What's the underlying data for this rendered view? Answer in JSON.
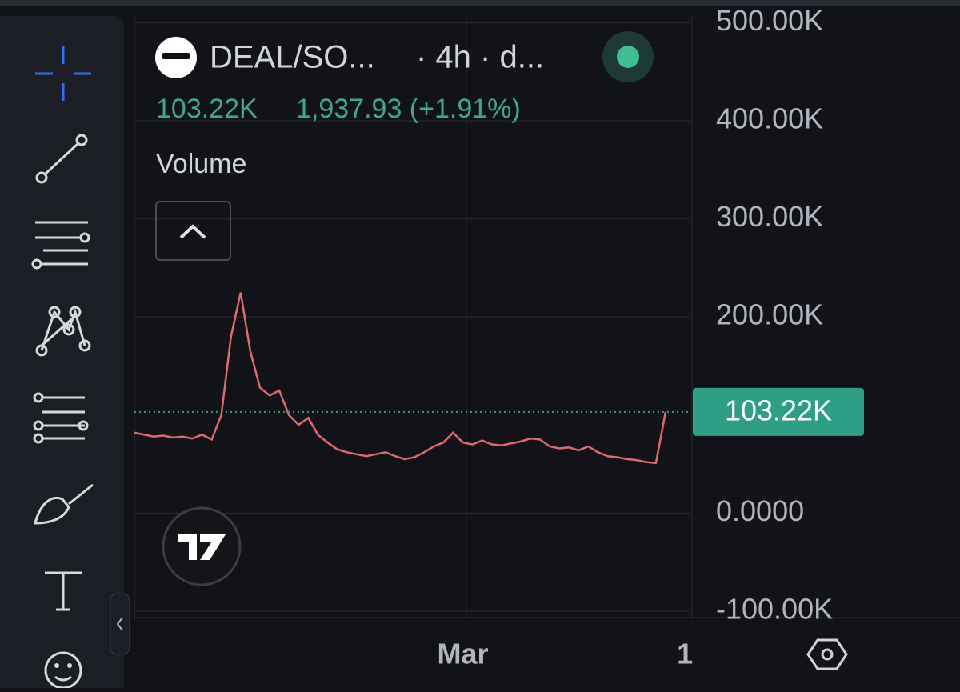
{
  "header": {
    "symbol": "DEAL/SO...",
    "interval": "· 4h · d...",
    "change": "1,937.93 (+1.91%)",
    "indicator": "Volume"
  },
  "chart_data": {
    "type": "line",
    "categories": [
      null,
      null,
      null,
      null,
      null,
      null,
      null,
      null,
      null,
      null,
      null,
      null,
      null,
      null,
      null,
      null,
      null,
      null,
      null,
      null,
      null,
      null,
      null,
      null,
      null,
      null,
      null,
      null,
      null,
      null,
      null,
      null,
      null,
      null,
      "Mar",
      null,
      null,
      null,
      null,
      null,
      null,
      null,
      null,
      null,
      null,
      null,
      null,
      null,
      null,
      null,
      null,
      null,
      null,
      null,
      null,
      null,
      null,
      "1"
    ],
    "series": [
      {
        "color": "#e0686f",
        "values": [
          82000,
          80000,
          78000,
          79000,
          77000,
          78000,
          76000,
          80000,
          75000,
          100000,
          180000,
          225000,
          165000,
          128000,
          120000,
          125000,
          100000,
          90000,
          97000,
          80000,
          72000,
          65000,
          62000,
          60000,
          58000,
          60000,
          62000,
          58000,
          55000,
          57000,
          62000,
          68000,
          72000,
          82000,
          72000,
          70000,
          74000,
          70000,
          69000,
          71000,
          73000,
          76000,
          75000,
          68000,
          66000,
          67000,
          64000,
          68000,
          62000,
          58000,
          57000,
          55000,
          54000,
          52000,
          51000,
          103220,
          null,
          null
        ]
      }
    ],
    "ylim": [
      -105000,
      507000
    ],
    "yticks": [
      {
        "value": -100000,
        "label": "-100.00K"
      },
      {
        "value": 0,
        "label": "0.0000"
      },
      {
        "value": 200000,
        "label": "200.00K"
      },
      {
        "value": 300000,
        "label": "300.00K"
      },
      {
        "value": 400000,
        "label": "400.00K"
      },
      {
        "value": 500000,
        "label": "500.00K"
      }
    ],
    "last_price": {
      "value": 103220,
      "label": "103.22K",
      "color": "#2e9e86"
    },
    "grid": true
  }
}
